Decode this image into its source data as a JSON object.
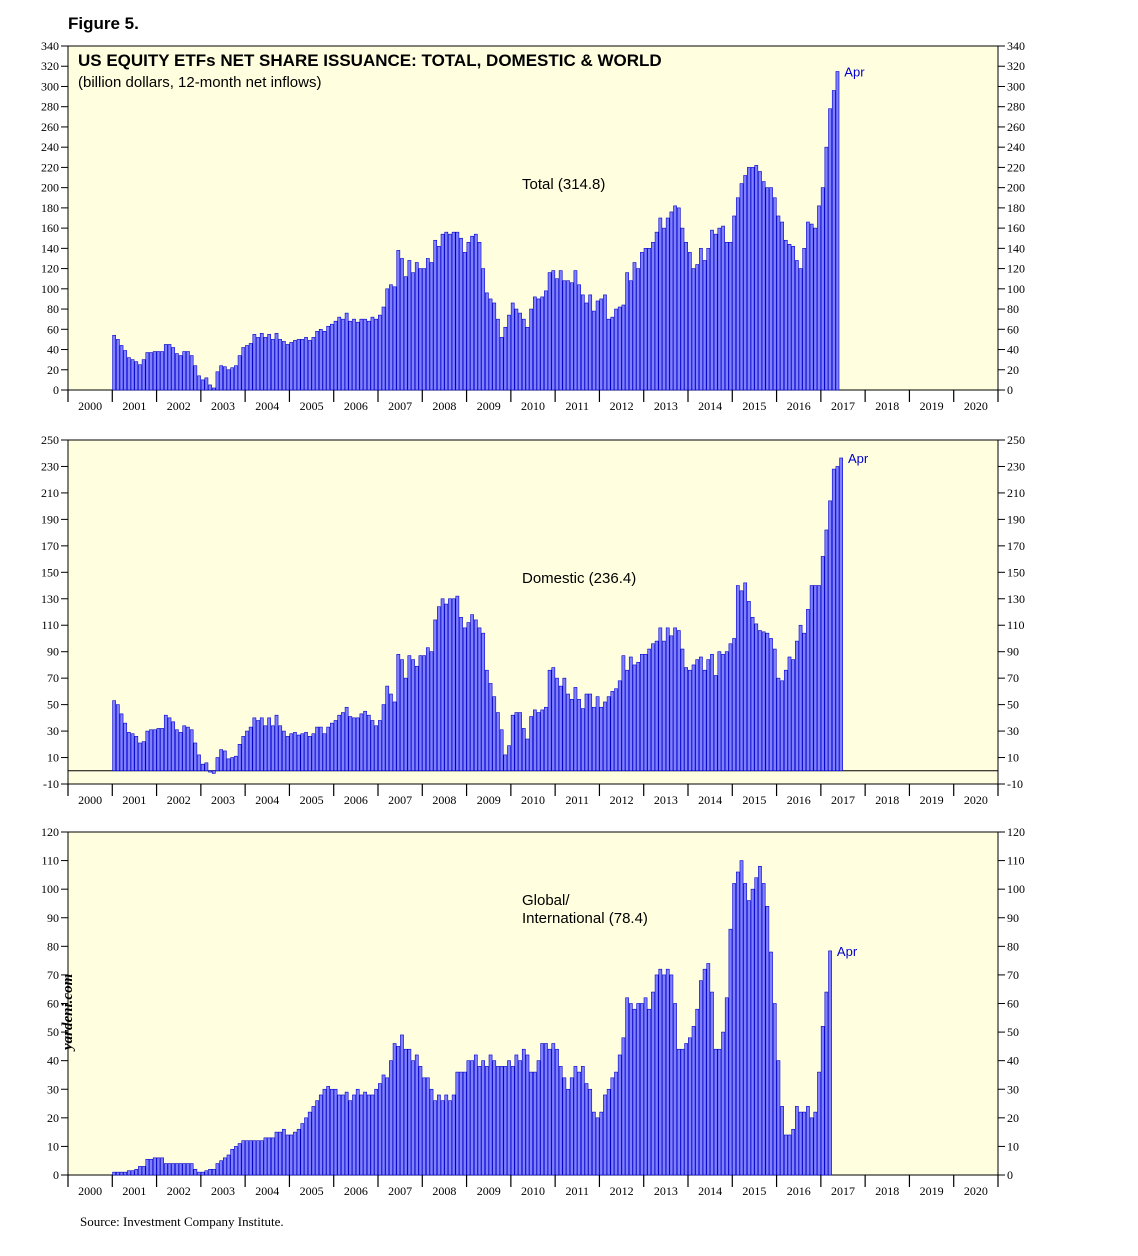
{
  "figure_label": "Figure 5.",
  "title": "US EQUITY ETFs NET SHARE ISSUANCE: TOTAL, DOMESTIC & WORLD",
  "subtitle": "(billion dollars, 12-month net inflows)",
  "source": "Source: Investment Company Institute.",
  "watermark": "yardeni.com",
  "colors": {
    "background": "#ffffe0",
    "bar_fill": "#7f7fff",
    "bar_edge": "#0000cc",
    "accent_text": "#0000cc"
  },
  "chart_data": [
    {
      "type": "bar",
      "annotation": "Total (314.8)",
      "end_label": "Apr",
      "ylim": [
        0,
        340
      ],
      "yticks": [
        0,
        20,
        40,
        60,
        80,
        100,
        120,
        140,
        160,
        180,
        200,
        220,
        240,
        260,
        280,
        300,
        320,
        340
      ],
      "xticks": [
        "2000",
        "2001",
        "2002",
        "2003",
        "2004",
        "2005",
        "2006",
        "2007",
        "2008",
        "2009",
        "2010",
        "2011",
        "2012",
        "2013",
        "2014",
        "2015",
        "2016",
        "2017",
        "2018",
        "2019",
        "2020"
      ],
      "start": "2001-01",
      "values": [
        54,
        50,
        44,
        39,
        32,
        30,
        28,
        25,
        30,
        37,
        37,
        38,
        38,
        38,
        45,
        45,
        42,
        36,
        34,
        38,
        38,
        34,
        24,
        14,
        10,
        12,
        5,
        2,
        18,
        24,
        23,
        20,
        22,
        24,
        34,
        42,
        44,
        46,
        55,
        52,
        56,
        52,
        55,
        50,
        56,
        50,
        48,
        45,
        47,
        49,
        50,
        50,
        52,
        49,
        52,
        58,
        60,
        58,
        63,
        65,
        68,
        72,
        70,
        76,
        68,
        70,
        67,
        70,
        70,
        68,
        72,
        70,
        74,
        82,
        100,
        104,
        102,
        138,
        130,
        112,
        128,
        116,
        126,
        120,
        120,
        130,
        126,
        148,
        142,
        154,
        156,
        154,
        156,
        156,
        150,
        136,
        146,
        152,
        154,
        146,
        120,
        96,
        90,
        86,
        70,
        52,
        62,
        74,
        86,
        80,
        76,
        70,
        62,
        80,
        92,
        90,
        92,
        98,
        116,
        118,
        110,
        118,
        108,
        108,
        106,
        118,
        104,
        94,
        86,
        94,
        78,
        88,
        90,
        94,
        70,
        72,
        80,
        82,
        84,
        116,
        108,
        126,
        120,
        136,
        140,
        140,
        146,
        156,
        170,
        160,
        170,
        176,
        182,
        180,
        160,
        146,
        136,
        120,
        124,
        140,
        128,
        140,
        158,
        154,
        160,
        162,
        146,
        146,
        172,
        190,
        204,
        212,
        220,
        220,
        222,
        216,
        206,
        200,
        200,
        190,
        172,
        166,
        148,
        144,
        142,
        128,
        120,
        140,
        166,
        164,
        160,
        182,
        200,
        240,
        278,
        296,
        314.8
      ]
    },
    {
      "type": "bar",
      "annotation": "Domestic (236.4)",
      "end_label": "Apr",
      "ylim": [
        -10,
        250
      ],
      "yticks": [
        -10,
        10,
        30,
        50,
        70,
        90,
        110,
        130,
        150,
        170,
        190,
        210,
        230,
        250
      ],
      "xticks": [
        "2000",
        "2001",
        "2002",
        "2003",
        "2004",
        "2005",
        "2006",
        "2007",
        "2008",
        "2009",
        "2010",
        "2011",
        "2012",
        "2013",
        "2014",
        "2015",
        "2016",
        "2017",
        "2018",
        "2019",
        "2020"
      ],
      "start": "2001-01",
      "values": [
        53,
        50,
        43,
        36,
        29,
        28,
        26,
        21,
        22,
        30,
        31,
        31,
        32,
        32,
        42,
        40,
        37,
        31,
        29,
        34,
        33,
        31,
        21,
        12,
        5,
        6,
        -1,
        -2,
        10,
        16,
        15,
        9,
        10,
        11,
        20,
        26,
        30,
        33,
        40,
        38,
        40,
        34,
        40,
        34,
        42,
        34,
        30,
        26,
        28,
        29,
        27,
        28,
        29,
        26,
        28,
        33,
        33,
        28,
        33,
        36,
        38,
        42,
        44,
        48,
        41,
        40,
        40,
        43,
        45,
        42,
        38,
        34,
        38,
        50,
        64,
        58,
        52,
        88,
        84,
        70,
        87,
        84,
        79,
        87,
        87,
        93,
        90,
        114,
        124,
        130,
        126,
        130,
        130,
        132,
        116,
        108,
        112,
        118,
        114,
        108,
        104,
        76,
        66,
        56,
        44,
        31,
        12,
        19,
        42,
        44,
        44,
        32,
        24,
        41,
        46,
        44,
        46,
        48,
        76,
        78,
        70,
        64,
        70,
        58,
        54,
        63,
        54,
        47,
        58,
        58,
        48,
        56,
        48,
        52,
        56,
        60,
        62,
        68,
        87,
        76,
        86,
        80,
        82,
        88,
        88,
        92,
        96,
        98,
        108,
        98,
        108,
        102,
        108,
        106,
        92,
        78,
        76,
        80,
        84,
        86,
        76,
        84,
        88,
        72,
        90,
        88,
        90,
        96,
        100,
        140,
        136,
        142,
        128,
        116,
        111,
        106,
        105,
        104,
        100,
        92,
        70,
        68,
        76,
        86,
        84,
        98,
        110,
        104,
        122,
        140,
        140,
        140,
        162,
        182,
        204,
        228,
        230,
        236.4
      ]
    },
    {
      "type": "bar",
      "annotation": "Global/ International (78.4)",
      "end_label": "Apr",
      "ylim": [
        0,
        120
      ],
      "yticks": [
        0,
        10,
        20,
        30,
        40,
        50,
        60,
        70,
        80,
        90,
        100,
        110,
        120
      ],
      "xticks": [
        "2000",
        "2001",
        "2002",
        "2003",
        "2004",
        "2005",
        "2006",
        "2007",
        "2008",
        "2009",
        "2010",
        "2011",
        "2012",
        "2013",
        "2014",
        "2015",
        "2016",
        "2017",
        "2018",
        "2019",
        "2020"
      ],
      "start": "2001-01",
      "values": [
        1,
        1,
        1,
        1,
        1.5,
        1.5,
        2,
        3,
        3,
        5.5,
        5.5,
        6,
        6,
        6,
        4,
        4,
        4,
        4,
        4,
        4,
        4,
        4,
        2,
        1,
        1,
        1.5,
        2,
        2,
        4,
        5,
        6,
        7,
        9,
        10,
        11,
        12,
        12,
        12,
        12,
        12,
        12,
        13,
        13,
        13,
        15,
        15,
        16,
        14,
        14,
        15,
        16,
        18,
        20,
        22,
        24,
        26,
        28,
        30,
        31,
        30,
        30,
        28,
        28,
        29,
        26,
        28,
        30,
        28,
        29,
        28,
        28,
        30,
        32,
        35,
        34,
        40,
        46,
        45,
        49,
        44,
        44,
        40,
        42,
        38,
        34,
        34,
        30,
        26,
        28,
        26,
        28,
        26,
        28,
        36,
        36,
        36,
        40,
        40,
        42,
        38,
        40,
        38,
        42,
        40,
        38,
        38,
        38,
        40,
        38,
        42,
        40,
        44,
        42,
        36,
        36,
        40,
        46,
        46,
        44,
        46,
        44,
        38,
        34,
        30,
        34,
        38,
        36,
        38,
        32,
        30,
        22,
        20,
        22,
        28,
        30,
        34,
        36,
        42,
        48,
        62,
        60,
        58,
        60,
        60,
        62,
        58,
        64,
        70,
        72,
        70,
        72,
        70,
        60,
        44,
        44,
        46,
        48,
        52,
        58,
        68,
        72,
        74,
        64,
        44,
        44,
        50,
        62,
        86,
        102,
        106,
        110,
        102,
        96,
        100,
        104,
        108,
        102,
        94,
        78,
        60,
        40,
        24,
        14,
        14,
        16,
        24,
        22,
        22,
        24,
        20,
        22,
        36,
        52,
        64,
        78.4
      ]
    }
  ]
}
